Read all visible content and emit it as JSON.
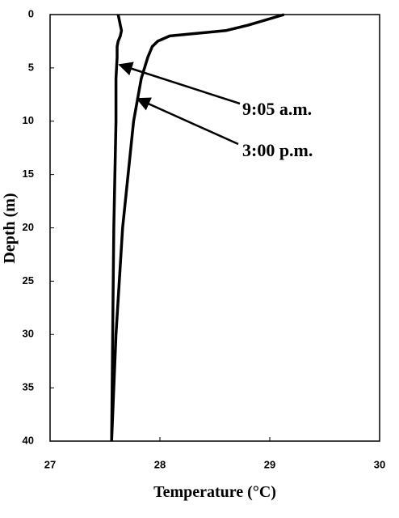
{
  "chart_data": {
    "type": "line",
    "x_label": "Temperature (°C)",
    "y_label": "Depth (m)",
    "depths": [
      0,
      1,
      1.5,
      2,
      2.5,
      3,
      4,
      6,
      10,
      20,
      30,
      40
    ],
    "series": [
      {
        "name": "9:05 a.m.",
        "color": "#000000",
        "values": [
          27.62,
          27.64,
          27.65,
          27.64,
          27.62,
          27.61,
          27.61,
          27.6,
          27.6,
          27.58,
          27.57,
          27.56
        ]
      },
      {
        "name": "3:00 p.m.",
        "color": "#000000",
        "values": [
          29.13,
          28.8,
          28.6,
          28.09,
          27.98,
          27.93,
          27.89,
          27.83,
          27.76,
          27.66,
          27.6,
          27.56
        ]
      }
    ],
    "xlim": [
      27,
      30
    ],
    "xticks": [
      27,
      28,
      29,
      30
    ],
    "ylim": [
      0,
      40
    ],
    "yticks": [
      0,
      5,
      10,
      15,
      20,
      25,
      30,
      35,
      40
    ],
    "y_inverted": true
  }
}
